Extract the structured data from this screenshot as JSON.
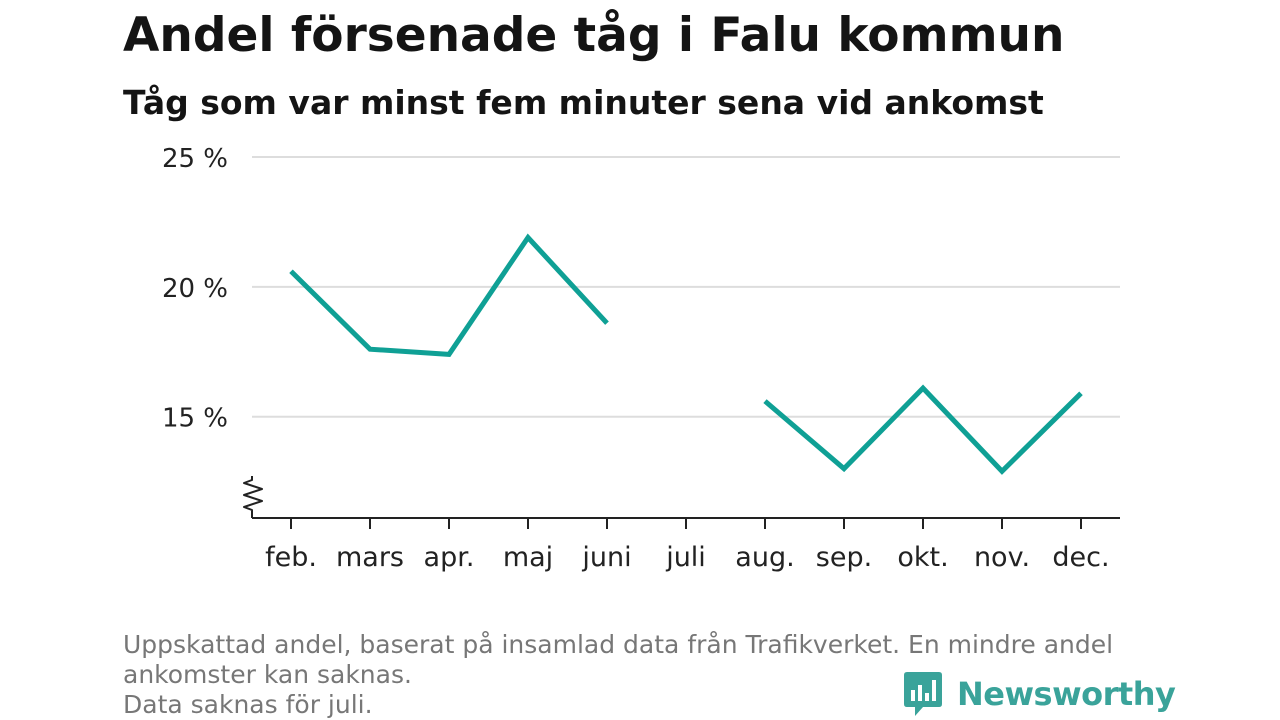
{
  "header": {
    "title": "Andel försenade tåg i Falu kommun",
    "subtitle": "Tåg som var minst fem minuter sena vid ankomst"
  },
  "footer": {
    "note_line1": "Uppskattad andel, baserat på insamlad data från Trafikverket. En mindre andel",
    "note_line2": "ankomster kan saknas.",
    "note_line3": "Data saknas för juli.",
    "brand": "Newsworthy",
    "brand_color": "#3aa39a"
  },
  "chart_data": {
    "type": "line",
    "title": "Andel försenade tåg i Falu kommun",
    "subtitle": "Tåg som var minst fem minuter sena vid ankomst",
    "xlabel": "",
    "ylabel": "",
    "categories": [
      "feb.",
      "mars",
      "apr.",
      "maj",
      "juni",
      "juli",
      "aug.",
      "sep.",
      "okt.",
      "nov.",
      "dec."
    ],
    "series": [
      {
        "values": [
          20.6,
          17.6,
          17.4,
          21.9,
          18.6,
          null,
          15.6,
          13.0,
          16.1,
          12.9,
          15.9
        ],
        "color": "#0fa095"
      }
    ],
    "yticks": [
      15,
      20,
      25
    ],
    "ytick_labels": [
      "15 %",
      "20 %",
      "25 %"
    ],
    "ylim": [
      11.1,
      25
    ],
    "y_axis_break": true,
    "grid": true,
    "legend": "none"
  }
}
